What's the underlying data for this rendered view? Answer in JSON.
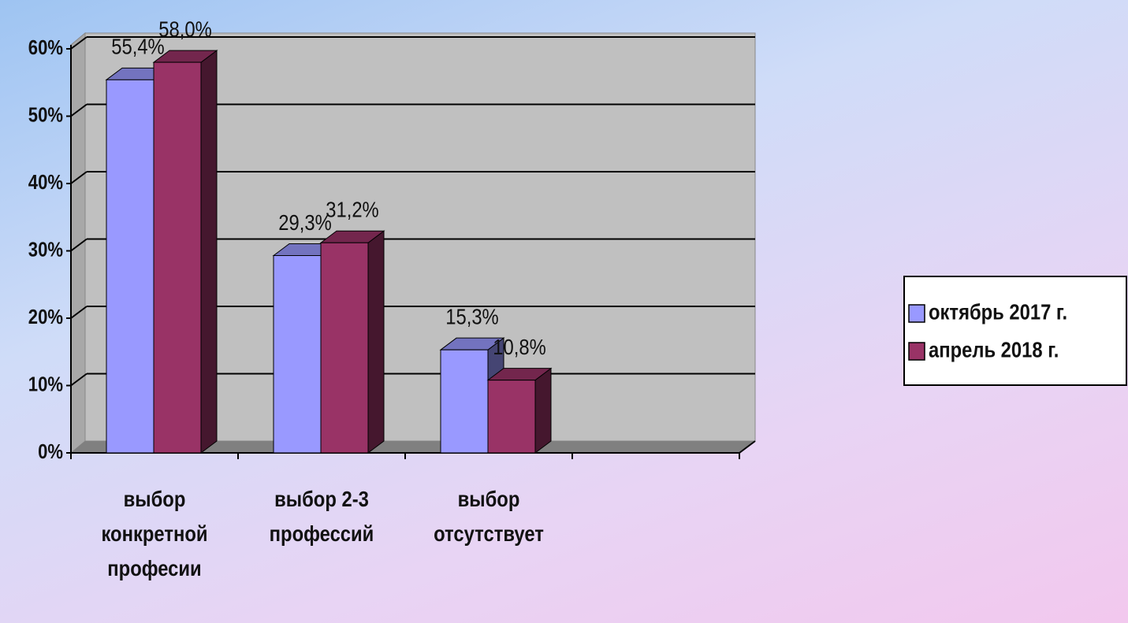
{
  "chart_data": {
    "type": "bar3d",
    "categories": [
      "выбор конкретной професии",
      "выбор 2-3 профессий",
      "выбор отсутствует",
      null
    ],
    "series": [
      {
        "name": "октябрь 2017 г.",
        "color": "#9999ff",
        "values": [
          55.4,
          29.3,
          15.3,
          null
        ],
        "value_labels": [
          "55,4%",
          "29,3%",
          "15,3%",
          null
        ]
      },
      {
        "name": "апрель 2018 г.",
        "color": "#993366",
        "values": [
          58.0,
          31.2,
          10.8,
          null
        ],
        "value_labels": [
          "58,0%",
          "31,2%",
          "10,8%",
          null
        ]
      }
    ],
    "ylim": [
      0,
      60
    ],
    "yticks": [
      {
        "value": 0,
        "label": "0%"
      },
      {
        "value": 10,
        "label": "10%"
      },
      {
        "value": 20,
        "label": "20%"
      },
      {
        "value": 30,
        "label": "30%"
      },
      {
        "value": 40,
        "label": "40%"
      },
      {
        "value": 50,
        "label": "50%"
      },
      {
        "value": 60,
        "label": "60%"
      }
    ],
    "grid": true,
    "legend": "right"
  }
}
